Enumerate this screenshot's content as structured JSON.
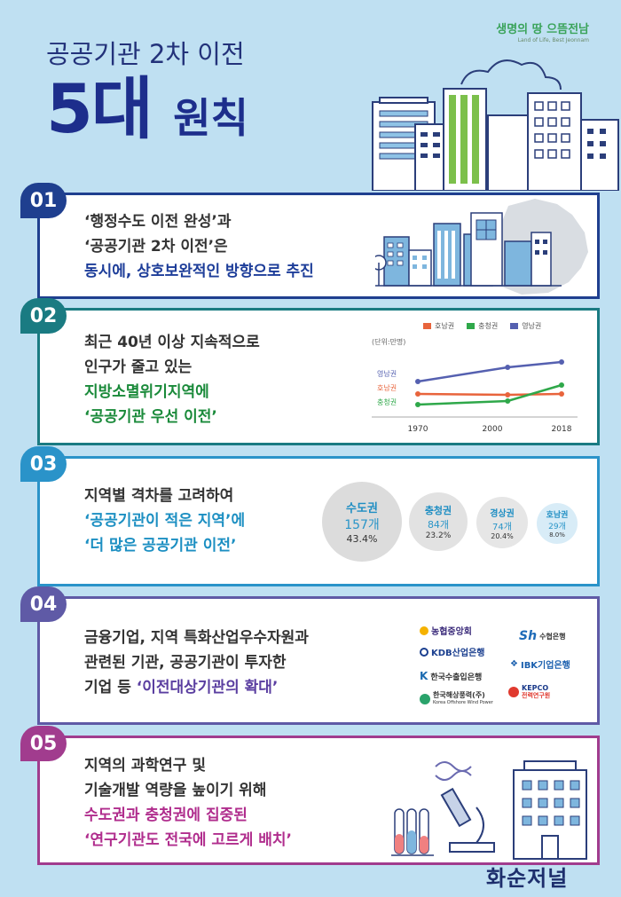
{
  "header": {
    "logo_main": "생명의 땅 으뜸전남",
    "logo_sub": "Land of Life, Best Jeonnam",
    "subtitle": "공공기관 2차 이전",
    "title_big": "5대",
    "title_small": "원칙"
  },
  "principles": [
    {
      "number": "01",
      "lines": [
        "‘행정수도 이전 완성’과",
        "‘공공기관 2차 이전’은"
      ],
      "emphasis": [
        "동시에, 상호보완적인 방향으로 추진"
      ],
      "color": "#1f3f8f"
    },
    {
      "number": "02",
      "lines": [
        "최근 40년 이상 지속적으로",
        "인구가 줄고 있는"
      ],
      "emphasis": [
        "지방소멸위기지역에",
        "‘공공기관 우선 이전’"
      ],
      "color": "#1a7b82"
    },
    {
      "number": "03",
      "lines": [
        "지역별 격차를 고려하여"
      ],
      "emphasis": [
        "‘공공기관이 적은 지역’에",
        "‘더 많은 공공기관 이전’"
      ],
      "color": "#2a93c9"
    },
    {
      "number": "04",
      "lines": [
        "금융기업, 지역 특화산업우수자원과",
        "관련된 기관, 공공기관이 투자한"
      ],
      "line3_prefix": "기업 등 ",
      "line3_emphasis": "‘이전대상기관의 확대’",
      "color": "#5f5aa6"
    },
    {
      "number": "05",
      "lines": [
        "지역의 과학연구 및",
        "기술개발 역량을 높이기 위해"
      ],
      "emphasis": [
        "수도권과 충청권에 집중된",
        "‘연구기관도 전국에 고르게 배치’"
      ],
      "color": "#a13c8e"
    }
  ],
  "chart_data": {
    "type": "line",
    "unit_label": "(단위:만명)",
    "x": [
      1970,
      2000,
      2018
    ],
    "legend": [
      "호남권",
      "충청권",
      "영남권"
    ],
    "series_labels": [
      "영남권",
      "호남권",
      "충청권"
    ],
    "series": [
      {
        "name": "호남권",
        "color": "#e8643c",
        "values": [
          52,
          51,
          52
        ]
      },
      {
        "name": "충청권",
        "color": "#2fa84a",
        "values": [
          40,
          44,
          62
        ]
      },
      {
        "name": "영남권",
        "color": "#5560b0",
        "values": [
          66,
          82,
          88
        ]
      }
    ],
    "ylim": [
      30,
      100
    ]
  },
  "regions": [
    {
      "name": "수도권",
      "count": "157개",
      "percent": "43.4%"
    },
    {
      "name": "충청권",
      "count": "84개",
      "percent": "23.2%"
    },
    {
      "name": "경상권",
      "count": "74개",
      "percent": "20.4%"
    },
    {
      "name": "호남권",
      "count": "29개",
      "percent": "8.0%"
    }
  ],
  "banks": {
    "nh": "농협중앙회",
    "sh": "수협은행",
    "kdb": "KDB산업은행",
    "ibk": "IBK기업은행",
    "kexim": "한국수출입은행",
    "kwp": "한국해상풍력(주)",
    "kwp_sub": "Korea Offshore Wind Power",
    "kepco": "KEPCO",
    "kepco_sub": "전력연구원"
  },
  "footer": {
    "logo": "화순저널"
  }
}
